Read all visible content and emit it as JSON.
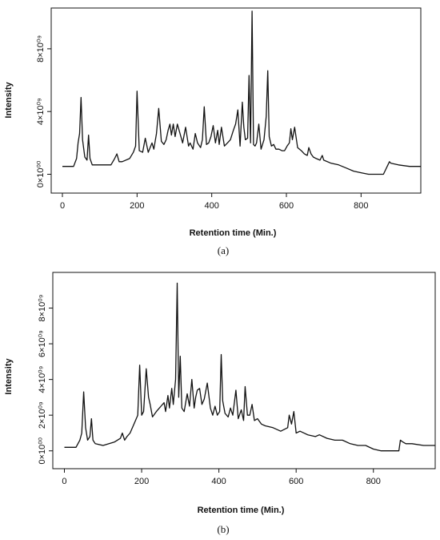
{
  "chart_data": [
    {
      "type": "line",
      "panel_label": "(a)",
      "xlabel": "Retention time (Min.)",
      "ylabel": "Intensity",
      "xlim": [
        -30,
        960
      ],
      "ylim": [
        -1.2,
        10.6
      ],
      "x_ticks": [
        0,
        200,
        400,
        600,
        800
      ],
      "y_ticks": [
        {
          "value": 0,
          "label": "0×10⁰⁰"
        },
        {
          "value": 4,
          "label": "4×10⁰⁹"
        },
        {
          "value": 8,
          "label": "8×10⁰⁹"
        }
      ],
      "y_unit_scale": "×10⁹",
      "grid": false,
      "series": [
        {
          "x": [
            0,
            30,
            38,
            42,
            46,
            50,
            54,
            60,
            66,
            70,
            74,
            80,
            100,
            130,
            140,
            146,
            152,
            160,
            180,
            190,
            196,
            200,
            206,
            215,
            222,
            230,
            240,
            245,
            252,
            258,
            265,
            272,
            278,
            283,
            288,
            292,
            297,
            302,
            308,
            315,
            322,
            330,
            338,
            342,
            350,
            356,
            362,
            370,
            375,
            380,
            386,
            392,
            398,
            404,
            410,
            416,
            420,
            426,
            434,
            442,
            450,
            458,
            464,
            470,
            476,
            482,
            486,
            490,
            496,
            500,
            504,
            508,
            512,
            516,
            520,
            526,
            532,
            540,
            546,
            550,
            554,
            560,
            566,
            572,
            580,
            588,
            595,
            602,
            608,
            612,
            616,
            622,
            630,
            640,
            648,
            656,
            660,
            666,
            672,
            680,
            690,
            696,
            700,
            720,
            740,
            760,
            780,
            800,
            820,
            840,
            860,
            866,
            870,
            876,
            880,
            900,
            930,
            960
          ],
          "y": [
            0.5,
            0.5,
            1.0,
            2.0,
            2.6,
            4.9,
            2.2,
            1.1,
            0.9,
            2.5,
            1.0,
            0.6,
            0.6,
            0.6,
            1.0,
            1.3,
            0.8,
            0.8,
            1.0,
            1.4,
            1.8,
            5.3,
            1.5,
            1.4,
            2.3,
            1.4,
            2.0,
            1.6,
            2.6,
            4.2,
            2.1,
            1.9,
            2.2,
            2.8,
            3.2,
            2.5,
            3.2,
            2.4,
            3.2,
            2.6,
            2.0,
            3.0,
            1.8,
            2.0,
            1.6,
            2.6,
            2.0,
            1.7,
            2.2,
            4.3,
            1.9,
            2.0,
            2.4,
            3.1,
            2.0,
            2.8,
            1.9,
            3.0,
            1.8,
            2.0,
            2.2,
            2.8,
            3.2,
            4.1,
            1.8,
            4.6,
            3.0,
            2.2,
            2.3,
            6.3,
            2.0,
            10.4,
            1.9,
            1.8,
            2.0,
            3.2,
            1.6,
            2.2,
            3.7,
            6.6,
            2.4,
            1.8,
            1.9,
            1.6,
            1.6,
            1.5,
            1.5,
            1.8,
            2.0,
            2.9,
            2.2,
            3.0,
            1.7,
            1.5,
            1.3,
            1.2,
            1.7,
            1.3,
            1.1,
            1.0,
            0.9,
            1.2,
            0.9,
            0.7,
            0.6,
            0.4,
            0.2,
            0.1,
            0.0,
            0.0,
            0.0,
            0.3,
            0.5,
            0.8,
            0.7,
            0.6,
            0.5,
            0.5
          ]
        }
      ]
    },
    {
      "type": "line",
      "panel_label": "(b)",
      "xlabel": "Retention time (Min.)",
      "ylabel": "Intensity",
      "xlim": [
        -30,
        960
      ],
      "ylim": [
        -1.0,
        10.0
      ],
      "x_ticks": [
        0,
        200,
        400,
        600,
        800
      ],
      "y_ticks": [
        {
          "value": 0,
          "label": "0×10⁰⁰"
        },
        {
          "value": 2,
          "label": "2×10⁰⁹"
        },
        {
          "value": 4,
          "label": "4×10⁰⁹"
        },
        {
          "value": 6,
          "label": "6×10⁰⁹"
        },
        {
          "value": 8,
          "label": "8×10⁰⁹"
        }
      ],
      "y_unit_scale": "×10⁹",
      "grid": false,
      "series": [
        {
          "x": [
            0,
            30,
            40,
            45,
            50,
            55,
            60,
            66,
            70,
            74,
            80,
            100,
            130,
            145,
            150,
            156,
            162,
            170,
            182,
            190,
            195,
            200,
            205,
            212,
            218,
            222,
            228,
            238,
            250,
            258,
            262,
            268,
            272,
            278,
            282,
            288,
            292,
            296,
            300,
            304,
            310,
            318,
            324,
            330,
            336,
            340,
            344,
            350,
            356,
            362,
            370,
            378,
            384,
            390,
            396,
            402,
            406,
            410,
            416,
            424,
            430,
            436,
            444,
            450,
            458,
            464,
            468,
            474,
            480,
            486,
            492,
            500,
            510,
            520,
            540,
            560,
            578,
            582,
            588,
            594,
            600,
            610,
            630,
            650,
            660,
            680,
            700,
            720,
            740,
            760,
            780,
            800,
            820,
            840,
            860,
            866,
            870,
            876,
            884,
            900,
            930,
            960
          ],
          "y": [
            0.2,
            0.2,
            0.6,
            1.0,
            3.3,
            1.3,
            0.6,
            0.8,
            1.8,
            0.6,
            0.4,
            0.3,
            0.5,
            0.7,
            1.0,
            0.6,
            0.8,
            1.0,
            1.6,
            2.0,
            4.8,
            2.0,
            2.2,
            4.6,
            3.0,
            2.6,
            1.9,
            2.2,
            2.5,
            2.7,
            2.2,
            3.1,
            2.4,
            3.5,
            2.6,
            4.0,
            9.4,
            3.0,
            5.3,
            2.4,
            2.2,
            3.2,
            2.5,
            4.0,
            2.4,
            3.0,
            3.4,
            3.5,
            2.6,
            2.9,
            3.8,
            2.4,
            2.0,
            2.5,
            2.0,
            2.2,
            5.4,
            2.8,
            2.1,
            1.9,
            2.4,
            2.0,
            3.4,
            1.8,
            2.3,
            1.7,
            3.6,
            2.0,
            2.0,
            2.6,
            1.7,
            1.8,
            1.5,
            1.4,
            1.3,
            1.1,
            1.3,
            2.0,
            1.5,
            2.2,
            1.0,
            1.1,
            0.9,
            0.8,
            0.9,
            0.7,
            0.6,
            0.6,
            0.4,
            0.3,
            0.3,
            0.1,
            0.0,
            0.0,
            0.0,
            0.0,
            0.6,
            0.5,
            0.4,
            0.4,
            0.3,
            0.3
          ]
        }
      ]
    }
  ]
}
